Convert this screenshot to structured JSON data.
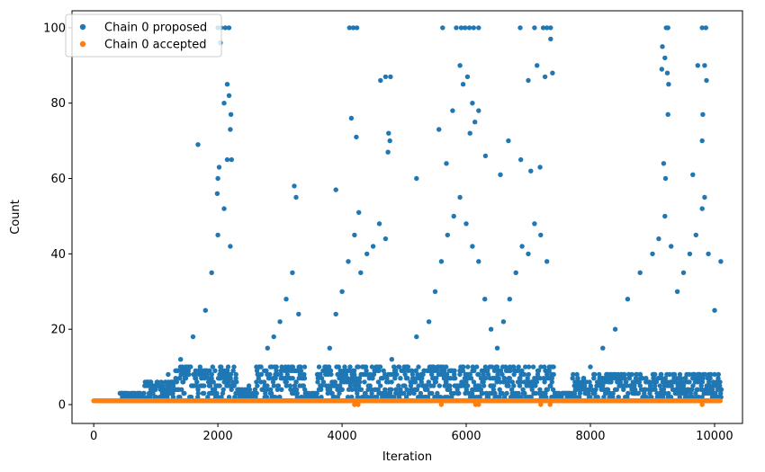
{
  "chart_data": {
    "type": "scatter",
    "xlabel": "Iteration",
    "ylabel": "Count",
    "xlim": [
      -350,
      10450
    ],
    "ylim": [
      -5,
      104.5
    ],
    "xticks": [
      0,
      2000,
      4000,
      6000,
      8000,
      10000
    ],
    "yticks": [
      0,
      20,
      40,
      60,
      80,
      100
    ],
    "grid": false,
    "legend_position": "top-left",
    "series": [
      {
        "name": "Chain 0 proposed",
        "color": "#1f77b4",
        "points": [
          [
            2000,
            100
          ],
          [
            2050,
            100
          ],
          [
            2120,
            100
          ],
          [
            2180,
            100
          ],
          [
            4120,
            100
          ],
          [
            4180,
            100
          ],
          [
            4240,
            100
          ],
          [
            5620,
            100
          ],
          [
            5840,
            100
          ],
          [
            5920,
            100
          ],
          [
            5980,
            100
          ],
          [
            6050,
            100
          ],
          [
            6120,
            100
          ],
          [
            6200,
            100
          ],
          [
            6870,
            100
          ],
          [
            7100,
            100
          ],
          [
            7240,
            100
          ],
          [
            7300,
            100
          ],
          [
            7360,
            100
          ],
          [
            9220,
            100
          ],
          [
            9250,
            100
          ],
          [
            9800,
            100
          ],
          [
            9860,
            100
          ],
          [
            2040,
            96
          ],
          [
            7360,
            97
          ],
          [
            9200,
            92
          ],
          [
            9160,
            95
          ],
          [
            2150,
            85
          ],
          [
            2180,
            82
          ],
          [
            2100,
            80
          ],
          [
            2210,
            77
          ],
          [
            2200,
            73
          ],
          [
            4700,
            87
          ],
          [
            4780,
            87
          ],
          [
            4620,
            86
          ],
          [
            5900,
            90
          ],
          [
            6020,
            87
          ],
          [
            5950,
            85
          ],
          [
            6100,
            80
          ],
          [
            5780,
            78
          ],
          [
            6200,
            78
          ],
          [
            6140,
            75
          ],
          [
            6060,
            72
          ],
          [
            7140,
            90
          ],
          [
            7270,
            87
          ],
          [
            7390,
            88
          ],
          [
            7000,
            86
          ],
          [
            9240,
            88
          ],
          [
            9260,
            85
          ],
          [
            9840,
            90
          ],
          [
            9870,
            86
          ],
          [
            9730,
            90
          ],
          [
            9150,
            89
          ],
          [
            1680,
            69
          ],
          [
            3230,
            58
          ],
          [
            3260,
            55
          ],
          [
            4150,
            76
          ],
          [
            4230,
            71
          ],
          [
            4750,
            72
          ],
          [
            4770,
            70
          ],
          [
            4740,
            67
          ],
          [
            5200,
            60
          ],
          [
            5560,
            73
          ],
          [
            5680,
            64
          ],
          [
            6310,
            66
          ],
          [
            6680,
            70
          ],
          [
            6550,
            61
          ],
          [
            6880,
            65
          ],
          [
            7040,
            62
          ],
          [
            7190,
            63
          ],
          [
            9180,
            64
          ],
          [
            9210,
            60
          ],
          [
            9650,
            61
          ],
          [
            9800,
            70
          ],
          [
            9810,
            77
          ],
          [
            9250,
            77
          ],
          [
            9840,
            55
          ],
          [
            2000,
            60
          ],
          [
            2020,
            63
          ],
          [
            1990,
            56
          ],
          [
            2150,
            65
          ],
          [
            2220,
            65
          ],
          [
            3900,
            57
          ],
          [
            4270,
            51
          ],
          [
            500,
            2
          ],
          [
            800,
            3
          ],
          [
            1000,
            5
          ],
          [
            1200,
            8
          ],
          [
            1400,
            12
          ],
          [
            1600,
            18
          ],
          [
            1800,
            25
          ],
          [
            1900,
            35
          ],
          [
            2000,
            45
          ],
          [
            2100,
            52
          ],
          [
            2200,
            42
          ],
          [
            2300,
            6
          ],
          [
            2500,
            5
          ],
          [
            2700,
            8
          ],
          [
            2800,
            15
          ],
          [
            2900,
            18
          ],
          [
            3000,
            22
          ],
          [
            3100,
            28
          ],
          [
            3200,
            35
          ],
          [
            3300,
            24
          ],
          [
            3400,
            4
          ],
          [
            3600,
            8
          ],
          [
            3800,
            15
          ],
          [
            3900,
            24
          ],
          [
            4000,
            30
          ],
          [
            4100,
            38
          ],
          [
            4200,
            45
          ],
          [
            4300,
            35
          ],
          [
            4400,
            40
          ],
          [
            4500,
            42
          ],
          [
            4600,
            48
          ],
          [
            4700,
            44
          ],
          [
            4800,
            12
          ],
          [
            5000,
            10
          ],
          [
            5200,
            18
          ],
          [
            5400,
            22
          ],
          [
            5500,
            30
          ],
          [
            5600,
            38
          ],
          [
            5700,
            45
          ],
          [
            5800,
            50
          ],
          [
            5900,
            55
          ],
          [
            6000,
            48
          ],
          [
            6100,
            42
          ],
          [
            6200,
            38
          ],
          [
            6300,
            28
          ],
          [
            6400,
            20
          ],
          [
            6500,
            15
          ],
          [
            6600,
            22
          ],
          [
            6700,
            28
          ],
          [
            6800,
            35
          ],
          [
            6900,
            42
          ],
          [
            7000,
            40
          ],
          [
            7100,
            48
          ],
          [
            7200,
            45
          ],
          [
            7300,
            38
          ],
          [
            7400,
            4
          ],
          [
            7600,
            3
          ],
          [
            7800,
            6
          ],
          [
            8000,
            10
          ],
          [
            8200,
            15
          ],
          [
            8400,
            20
          ],
          [
            8600,
            28
          ],
          [
            8800,
            35
          ],
          [
            9000,
            40
          ],
          [
            9100,
            44
          ],
          [
            9200,
            50
          ],
          [
            9300,
            42
          ],
          [
            9400,
            30
          ],
          [
            9500,
            35
          ],
          [
            9600,
            40
          ],
          [
            9700,
            45
          ],
          [
            9800,
            52
          ],
          [
            9900,
            40
          ],
          [
            10000,
            25
          ],
          [
            10100,
            38
          ]
        ]
      },
      {
        "name": "Chain 0 accepted",
        "color": "#ff7f0e",
        "points": []
      }
    ]
  }
}
